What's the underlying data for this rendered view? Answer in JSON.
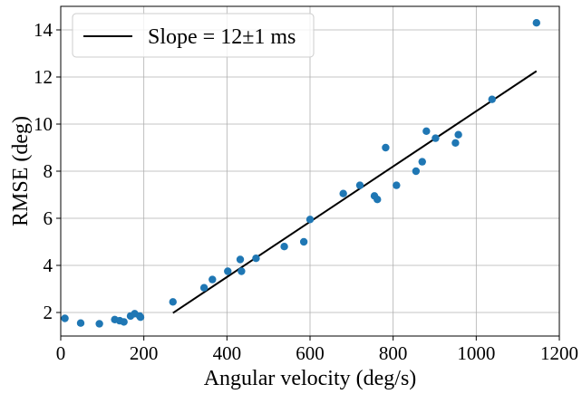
{
  "chart_data": {
    "type": "scatter",
    "xlabel": "Angular velocity (deg/s)",
    "ylabel": "RMSE (deg)",
    "xlim": [
      0,
      1200
    ],
    "ylim": [
      1.0,
      15.0
    ],
    "xticks": [
      0,
      200,
      400,
      600,
      800,
      1000,
      1200
    ],
    "yticks": [
      2,
      4,
      6,
      8,
      10,
      12,
      14
    ],
    "grid": true,
    "legend_position": "top-left",
    "marker_color": "#1f77b4",
    "line_color": "#000000",
    "series": [
      {
        "kind": "scatter",
        "points": [
          [
            10,
            1.75
          ],
          [
            48,
            1.55
          ],
          [
            93,
            1.52
          ],
          [
            130,
            1.7
          ],
          [
            142,
            1.65
          ],
          [
            152,
            1.6
          ],
          [
            168,
            1.85
          ],
          [
            178,
            1.95
          ],
          [
            190,
            1.85
          ],
          [
            192,
            1.8
          ],
          [
            270,
            2.45
          ],
          [
            345,
            3.05
          ],
          [
            365,
            3.4
          ],
          [
            402,
            3.75
          ],
          [
            432,
            4.25
          ],
          [
            435,
            3.75
          ],
          [
            470,
            4.3
          ],
          [
            538,
            4.8
          ],
          [
            585,
            5.0
          ],
          [
            600,
            5.95
          ],
          [
            680,
            7.05
          ],
          [
            720,
            7.4
          ],
          [
            755,
            6.95
          ],
          [
            762,
            6.8
          ],
          [
            782,
            9.0
          ],
          [
            808,
            7.4
          ],
          [
            855,
            8.0
          ],
          [
            870,
            8.4
          ],
          [
            880,
            9.7
          ],
          [
            902,
            9.4
          ],
          [
            950,
            9.2
          ],
          [
            957,
            9.55
          ],
          [
            1038,
            11.05
          ],
          [
            1145,
            14.3
          ]
        ]
      },
      {
        "kind": "line",
        "name": "Slope = 12±1 ms",
        "points": [
          [
            270,
            1.98
          ],
          [
            1145,
            12.25
          ]
        ]
      }
    ]
  }
}
